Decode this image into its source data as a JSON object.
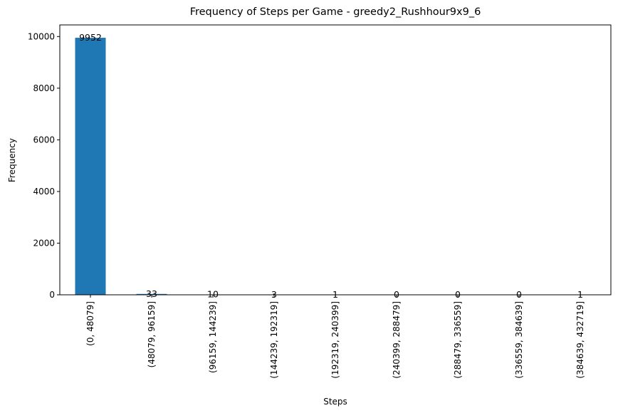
{
  "chart_data": {
    "type": "bar",
    "title": "Frequency of Steps per Game - greedy2_Rushhour9x9_6",
    "xlabel": "Steps",
    "ylabel": "Frequency",
    "categories": [
      "(0, 48079]",
      "(48079, 96159]",
      "(96159, 144239]",
      "(144239, 192319]",
      "(192319, 240399]",
      "(240399, 288479]",
      "(288479, 336559]",
      "(336559, 384639]",
      "(384639, 432719]"
    ],
    "values": [
      9952,
      33,
      10,
      3,
      1,
      0,
      0,
      0,
      1
    ],
    "data_labels": [
      "9952",
      "33",
      "10",
      "3",
      "1",
      "0",
      "0",
      "0",
      "1"
    ],
    "ylim": [
      0,
      10449.6
    ],
    "yticks": [
      0,
      2000,
      4000,
      6000,
      8000,
      10000
    ],
    "ytick_labels": [
      "0",
      "2000",
      "4000",
      "6000",
      "8000",
      "10000"
    ],
    "bar_color": "#1f77b4",
    "grid": false,
    "legend": false
  }
}
